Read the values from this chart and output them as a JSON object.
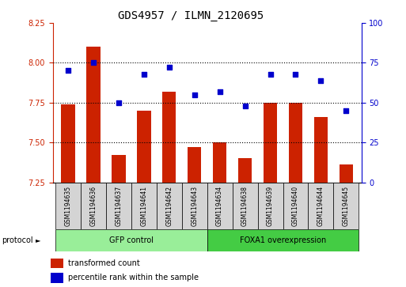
{
  "title": "GDS4957 / ILMN_2120695",
  "samples": [
    "GSM1194635",
    "GSM1194636",
    "GSM1194637",
    "GSM1194641",
    "GSM1194642",
    "GSM1194643",
    "GSM1194634",
    "GSM1194638",
    "GSM1194639",
    "GSM1194640",
    "GSM1194644",
    "GSM1194645"
  ],
  "transformed_count": [
    7.74,
    8.1,
    7.42,
    7.7,
    7.82,
    7.47,
    7.5,
    7.4,
    7.75,
    7.75,
    7.66,
    7.36
  ],
  "percentile_rank": [
    70,
    75,
    50,
    68,
    72,
    55,
    57,
    48,
    68,
    68,
    64,
    45
  ],
  "ymin": 7.25,
  "ymax": 8.25,
  "ylim_right": [
    0,
    100
  ],
  "yticks_left": [
    7.25,
    7.5,
    7.75,
    8.0,
    8.25
  ],
  "yticks_right": [
    0,
    25,
    50,
    75,
    100
  ],
  "bar_color": "#cc2200",
  "dot_color": "#0000cc",
  "gfp_color": "#99ee99",
  "foxa1_color": "#44cc44",
  "protocol_groups": [
    {
      "label": "GFP control",
      "start": 0,
      "end": 5
    },
    {
      "label": "FOXA1 overexpression",
      "start": 6,
      "end": 11
    }
  ],
  "legend_bar_label": "transformed count",
  "legend_dot_label": "percentile rank within the sample",
  "title_fontsize": 10,
  "tick_fontsize": 7,
  "label_fontsize": 7,
  "protocol_fontsize": 7
}
